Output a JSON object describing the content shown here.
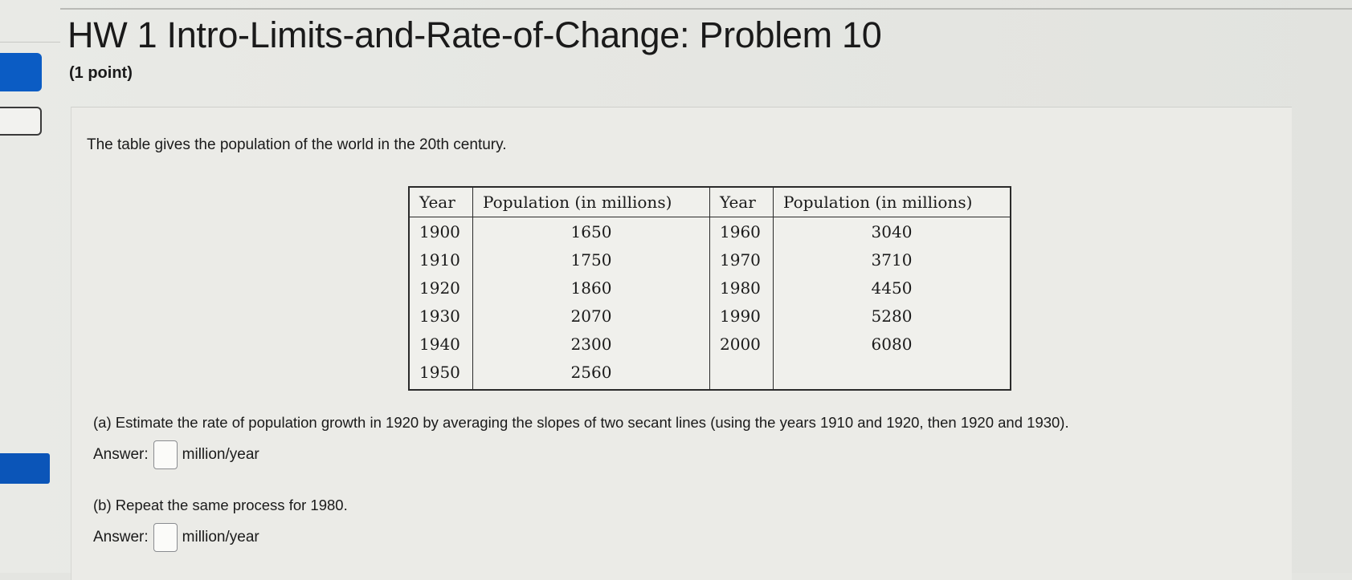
{
  "header": {
    "title": "HW 1 Intro-Limits-and-Rate-of-Change: Problem 10",
    "points": "(1 point)"
  },
  "problem": {
    "intro": "The table gives the population of the world in the 20th century.",
    "table": {
      "headers": [
        "Year",
        "Population (in millions)",
        "Year",
        "Population (in millions)"
      ],
      "rows": [
        [
          "1900",
          "1650",
          "1960",
          "3040"
        ],
        [
          "1910",
          "1750",
          "1970",
          "3710"
        ],
        [
          "1920",
          "1860",
          "1980",
          "4450"
        ],
        [
          "1930",
          "2070",
          "1990",
          "5280"
        ],
        [
          "1940",
          "2300",
          "2000",
          "6080"
        ],
        [
          "1950",
          "2560",
          "",
          ""
        ]
      ]
    },
    "part_a": {
      "text": "(a) Estimate the rate of population growth in 1920 by averaging the slopes of two secant lines (using the years 1910 and 1920, then 1920 and 1930).",
      "answer_label": "Answer:",
      "answer_value": "",
      "unit": "million/year"
    },
    "part_b": {
      "text": "(b) Repeat the same process for 1980.",
      "answer_label": "Answer:",
      "answer_value": "",
      "unit": "million/year"
    }
  },
  "colors": {
    "nav_blue": "#0b5cc4",
    "background": "#e4e5e1"
  }
}
